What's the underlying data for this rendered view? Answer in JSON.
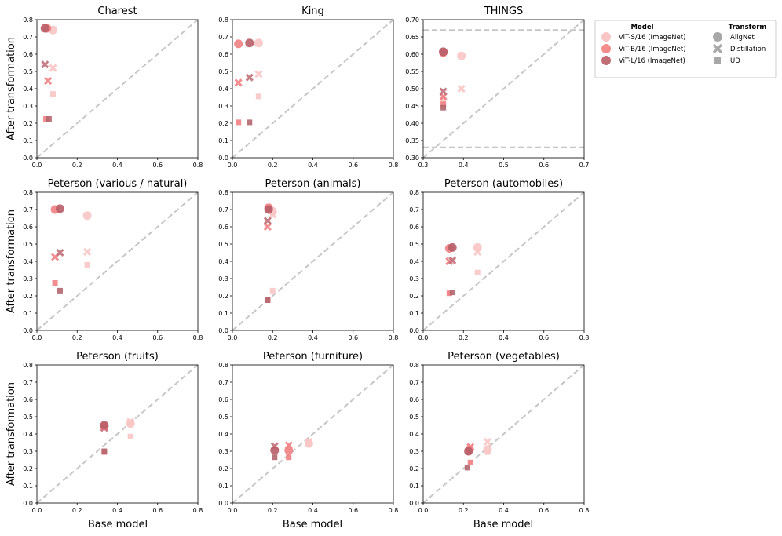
{
  "figure": {
    "ylabel": "After transformation",
    "xlabel": "Base model"
  },
  "legend": {
    "model_header": "Model",
    "transform_header": "Transform",
    "models": [
      {
        "label": "ViT-S/16 (ImageNet)",
        "color": "#f9c5c5"
      },
      {
        "label": "ViT-B/16 (ImageNet)",
        "color": "#f58c8c"
      },
      {
        "label": "ViT-L/16 (ImageNet)",
        "color": "#c26e76"
      }
    ],
    "transforms": [
      {
        "label": "AligNet",
        "marker": "circle"
      },
      {
        "label": "Distillation",
        "marker": "x"
      },
      {
        "label": "UD",
        "marker": "square"
      }
    ]
  },
  "styles": {
    "point_colors": {
      "S": "#f9c5c5",
      "B": "#f07f83",
      "L": "#b85d67",
      "LX": "#c0707a",
      "LS": "#b3676e"
    },
    "diag_color": "#c6c6c6"
  },
  "chart_data": [
    {
      "type": "scatter",
      "title": "Charest",
      "xlim": [
        0,
        0.8
      ],
      "ylim": [
        0,
        0.8
      ],
      "xticks": [
        "0.0",
        "0.2",
        "0.4",
        "0.6",
        "0.8"
      ],
      "yticks": [
        "0.0",
        "0.1",
        "0.2",
        "0.3",
        "0.4",
        "0.5",
        "0.6",
        "0.7",
        "0.8"
      ],
      "hlines": [],
      "points": [
        {
          "model": "S",
          "transform": "AligNet",
          "x": 0.08,
          "y": 0.74
        },
        {
          "model": "B",
          "transform": "AligNet",
          "x": 0.05,
          "y": 0.75
        },
        {
          "model": "L",
          "transform": "AligNet",
          "x": 0.04,
          "y": 0.75
        },
        {
          "model": "S",
          "transform": "Distillation",
          "x": 0.08,
          "y": 0.52
        },
        {
          "model": "B",
          "transform": "Distillation",
          "x": 0.055,
          "y": 0.445
        },
        {
          "model": "L",
          "transform": "Distillation",
          "x": 0.04,
          "y": 0.54
        },
        {
          "model": "S",
          "transform": "UD",
          "x": 0.08,
          "y": 0.37
        },
        {
          "model": "B",
          "transform": "UD",
          "x": 0.045,
          "y": 0.225
        },
        {
          "model": "L",
          "transform": "UD",
          "x": 0.06,
          "y": 0.225
        }
      ]
    },
    {
      "type": "scatter",
      "title": "King",
      "xlim": [
        0,
        0.8
      ],
      "ylim": [
        0,
        0.8
      ],
      "xticks": [
        "0.0",
        "0.2",
        "0.4",
        "0.6",
        "0.8"
      ],
      "yticks": [
        "0.0",
        "0.1",
        "0.2",
        "0.3",
        "0.4",
        "0.5",
        "0.6",
        "0.7",
        "0.8"
      ],
      "hlines": [],
      "points": [
        {
          "model": "S",
          "transform": "AligNet",
          "x": 0.13,
          "y": 0.665
        },
        {
          "model": "B",
          "transform": "AligNet",
          "x": 0.03,
          "y": 0.66
        },
        {
          "model": "L",
          "transform": "AligNet",
          "x": 0.085,
          "y": 0.665
        },
        {
          "model": "S",
          "transform": "Distillation",
          "x": 0.13,
          "y": 0.485
        },
        {
          "model": "B",
          "transform": "Distillation",
          "x": 0.03,
          "y": 0.435
        },
        {
          "model": "L",
          "transform": "Distillation",
          "x": 0.085,
          "y": 0.465
        },
        {
          "model": "S",
          "transform": "UD",
          "x": 0.13,
          "y": 0.355
        },
        {
          "model": "B",
          "transform": "UD",
          "x": 0.03,
          "y": 0.205
        },
        {
          "model": "L",
          "transform": "UD",
          "x": 0.085,
          "y": 0.205
        }
      ]
    },
    {
      "type": "scatter",
      "title": "THINGS",
      "xlim": [
        0.3,
        0.7
      ],
      "ylim": [
        0.3,
        0.7
      ],
      "xticks": [
        "0.3",
        "0.4",
        "0.5",
        "0.6",
        "0.7"
      ],
      "yticks": [
        "0.30",
        "0.35",
        "0.40",
        "0.45",
        "0.50",
        "0.55",
        "0.60",
        "0.65",
        "0.70"
      ],
      "hlines": [
        0.67,
        0.33
      ],
      "points": [
        {
          "model": "S",
          "transform": "AligNet",
          "x": 0.395,
          "y": 0.595
        },
        {
          "model": "B",
          "transform": "AligNet",
          "x": 0.35,
          "y": 0.605
        },
        {
          "model": "L",
          "transform": "AligNet",
          "x": 0.35,
          "y": 0.607
        },
        {
          "model": "S",
          "transform": "Distillation",
          "x": 0.395,
          "y": 0.5
        },
        {
          "model": "B",
          "transform": "Distillation",
          "x": 0.35,
          "y": 0.477
        },
        {
          "model": "L",
          "transform": "Distillation",
          "x": 0.35,
          "y": 0.492
        },
        {
          "model": "S",
          "transform": "UD",
          "x": 0.35,
          "y": 0.467
        },
        {
          "model": "B",
          "transform": "UD",
          "x": 0.35,
          "y": 0.455
        },
        {
          "model": "L",
          "transform": "UD",
          "x": 0.35,
          "y": 0.445
        }
      ]
    },
    {
      "type": "scatter",
      "title": "Peterson (various / natural)",
      "xlim": [
        0,
        0.8
      ],
      "ylim": [
        0,
        0.8
      ],
      "xticks": [
        "0.0",
        "0.2",
        "0.4",
        "0.6",
        "0.8"
      ],
      "yticks": [
        "0.0",
        "0.1",
        "0.2",
        "0.3",
        "0.4",
        "0.5",
        "0.6",
        "0.7",
        "0.8"
      ],
      "hlines": [],
      "points": [
        {
          "model": "S",
          "transform": "AligNet",
          "x": 0.25,
          "y": 0.665
        },
        {
          "model": "B",
          "transform": "AligNet",
          "x": 0.09,
          "y": 0.7
        },
        {
          "model": "L",
          "transform": "AligNet",
          "x": 0.115,
          "y": 0.705
        },
        {
          "model": "S",
          "transform": "Distillation",
          "x": 0.25,
          "y": 0.455
        },
        {
          "model": "B",
          "transform": "Distillation",
          "x": 0.09,
          "y": 0.425
        },
        {
          "model": "L",
          "transform": "Distillation",
          "x": 0.115,
          "y": 0.45
        },
        {
          "model": "S",
          "transform": "UD",
          "x": 0.25,
          "y": 0.38
        },
        {
          "model": "B",
          "transform": "UD",
          "x": 0.09,
          "y": 0.275
        },
        {
          "model": "L",
          "transform": "UD",
          "x": 0.115,
          "y": 0.23
        }
      ]
    },
    {
      "type": "scatter",
      "title": "Peterson (animals)",
      "xlim": [
        0,
        0.8
      ],
      "ylim": [
        0,
        0.8
      ],
      "xticks": [
        "0.0",
        "0.2",
        "0.4",
        "0.6",
        "0.8"
      ],
      "yticks": [
        "0.0",
        "0.1",
        "0.2",
        "0.3",
        "0.4",
        "0.5",
        "0.6",
        "0.7",
        "0.8"
      ],
      "hlines": [],
      "points": [
        {
          "model": "S",
          "transform": "AligNet",
          "x": 0.2,
          "y": 0.69
        },
        {
          "model": "B",
          "transform": "AligNet",
          "x": 0.18,
          "y": 0.71
        },
        {
          "model": "L",
          "transform": "AligNet",
          "x": 0.18,
          "y": 0.7
        },
        {
          "model": "S",
          "transform": "Distillation",
          "x": 0.2,
          "y": 0.67
        },
        {
          "model": "B",
          "transform": "Distillation",
          "x": 0.175,
          "y": 0.6
        },
        {
          "model": "L",
          "transform": "Distillation",
          "x": 0.175,
          "y": 0.635
        },
        {
          "model": "S",
          "transform": "UD",
          "x": 0.2,
          "y": 0.23
        },
        {
          "model": "B",
          "transform": "UD",
          "x": 0.175,
          "y": 0.175
        },
        {
          "model": "L",
          "transform": "UD",
          "x": 0.175,
          "y": 0.175
        }
      ]
    },
    {
      "type": "scatter",
      "title": "Peterson (automobiles)",
      "xlim": [
        0,
        0.8
      ],
      "ylim": [
        0,
        0.8
      ],
      "xticks": [
        "0.0",
        "0.2",
        "0.4",
        "0.6",
        "0.8"
      ],
      "yticks": [
        "0.0",
        "0.1",
        "0.2",
        "0.3",
        "0.4",
        "0.5",
        "0.6",
        "0.7",
        "0.8"
      ],
      "hlines": [],
      "points": [
        {
          "model": "S",
          "transform": "AligNet",
          "x": 0.27,
          "y": 0.48
        },
        {
          "model": "B",
          "transform": "AligNet",
          "x": 0.13,
          "y": 0.475
        },
        {
          "model": "L",
          "transform": "AligNet",
          "x": 0.145,
          "y": 0.48
        },
        {
          "model": "S",
          "transform": "Distillation",
          "x": 0.27,
          "y": 0.455
        },
        {
          "model": "B",
          "transform": "Distillation",
          "x": 0.13,
          "y": 0.4
        },
        {
          "model": "L",
          "transform": "Distillation",
          "x": 0.145,
          "y": 0.405
        },
        {
          "model": "S",
          "transform": "UD",
          "x": 0.27,
          "y": 0.335
        },
        {
          "model": "B",
          "transform": "UD",
          "x": 0.13,
          "y": 0.215
        },
        {
          "model": "L",
          "transform": "UD",
          "x": 0.145,
          "y": 0.22
        }
      ]
    },
    {
      "type": "scatter",
      "title": "Peterson (fruits)",
      "xlim": [
        0,
        0.8
      ],
      "ylim": [
        0,
        0.8
      ],
      "xticks": [
        "0.0",
        "0.2",
        "0.4",
        "0.6",
        "0.8"
      ],
      "yticks": [
        "0.0",
        "0.1",
        "0.2",
        "0.3",
        "0.4",
        "0.5",
        "0.6",
        "0.7",
        "0.8"
      ],
      "hlines": [],
      "points": [
        {
          "model": "S",
          "transform": "AligNet",
          "x": 0.465,
          "y": 0.46
        },
        {
          "model": "B",
          "transform": "AligNet",
          "x": 0.335,
          "y": 0.445
        },
        {
          "model": "L",
          "transform": "AligNet",
          "x": 0.335,
          "y": 0.45
        },
        {
          "model": "S",
          "transform": "Distillation",
          "x": 0.465,
          "y": 0.47
        },
        {
          "model": "B",
          "transform": "Distillation",
          "x": 0.335,
          "y": 0.44
        },
        {
          "model": "L",
          "transform": "Distillation",
          "x": 0.335,
          "y": 0.435
        },
        {
          "model": "S",
          "transform": "UD",
          "x": 0.465,
          "y": 0.385
        },
        {
          "model": "B",
          "transform": "UD",
          "x": 0.335,
          "y": 0.295
        },
        {
          "model": "L",
          "transform": "UD",
          "x": 0.335,
          "y": 0.3
        }
      ]
    },
    {
      "type": "scatter",
      "title": "Peterson (furniture)",
      "xlim": [
        0,
        0.8
      ],
      "ylim": [
        0,
        0.8
      ],
      "xticks": [
        "0.0",
        "0.2",
        "0.4",
        "0.6",
        "0.8"
      ],
      "yticks": [
        "0.0",
        "0.1",
        "0.2",
        "0.3",
        "0.4",
        "0.5",
        "0.6",
        "0.7",
        "0.8"
      ],
      "hlines": [],
      "points": [
        {
          "model": "S",
          "transform": "AligNet",
          "x": 0.38,
          "y": 0.345
        },
        {
          "model": "B",
          "transform": "AligNet",
          "x": 0.28,
          "y": 0.305
        },
        {
          "model": "L",
          "transform": "AligNet",
          "x": 0.21,
          "y": 0.305
        },
        {
          "model": "S",
          "transform": "Distillation",
          "x": 0.38,
          "y": 0.355
        },
        {
          "model": "B",
          "transform": "Distillation",
          "x": 0.28,
          "y": 0.335
        },
        {
          "model": "L",
          "transform": "Distillation",
          "x": 0.21,
          "y": 0.33
        },
        {
          "model": "S",
          "transform": "UD",
          "x": 0.38,
          "y": 0.35
        },
        {
          "model": "B",
          "transform": "UD",
          "x": 0.28,
          "y": 0.265
        },
        {
          "model": "L",
          "transform": "UD",
          "x": 0.21,
          "y": 0.265
        }
      ]
    },
    {
      "type": "scatter",
      "title": "Peterson (vegetables)",
      "xlim": [
        0,
        0.8
      ],
      "ylim": [
        0,
        0.8
      ],
      "xticks": [
        "0.0",
        "0.2",
        "0.4",
        "0.6",
        "0.8"
      ],
      "yticks": [
        "0.0",
        "0.1",
        "0.2",
        "0.3",
        "0.4",
        "0.5",
        "0.6",
        "0.7",
        "0.8"
      ],
      "hlines": [],
      "points": [
        {
          "model": "S",
          "transform": "AligNet",
          "x": 0.32,
          "y": 0.31
        },
        {
          "model": "B",
          "transform": "AligNet",
          "x": 0.23,
          "y": 0.31
        },
        {
          "model": "L",
          "transform": "AligNet",
          "x": 0.225,
          "y": 0.3
        },
        {
          "model": "S",
          "transform": "Distillation",
          "x": 0.32,
          "y": 0.355
        },
        {
          "model": "B",
          "transform": "Distillation",
          "x": 0.235,
          "y": 0.325
        },
        {
          "model": "L",
          "transform": "Distillation",
          "x": 0.225,
          "y": 0.3
        },
        {
          "model": "S",
          "transform": "UD",
          "x": 0.32,
          "y": 0.295
        },
        {
          "model": "B",
          "transform": "UD",
          "x": 0.235,
          "y": 0.235
        },
        {
          "model": "L",
          "transform": "UD",
          "x": 0.22,
          "y": 0.205
        }
      ]
    }
  ]
}
